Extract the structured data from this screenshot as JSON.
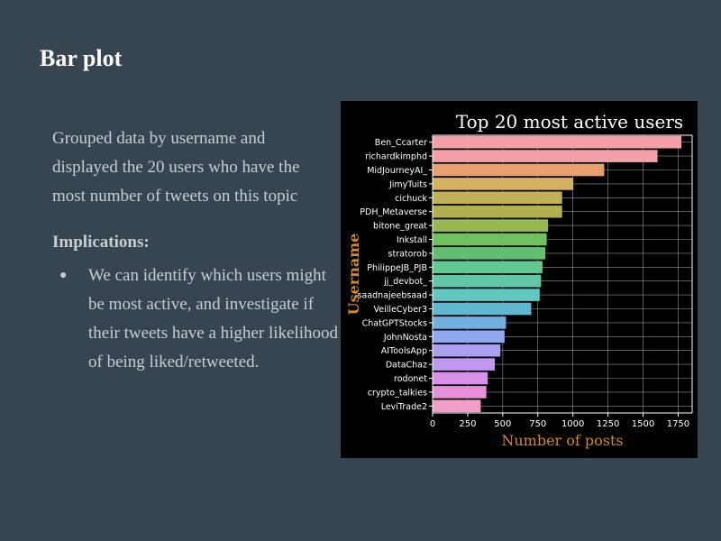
{
  "slide": {
    "title": "Bar plot",
    "description": "Grouped data by username and displayed the 20 users who have the most number of tweets on this topic",
    "implications_heading": "Implications:",
    "bullets": [
      "We can identify which users might be most active, and investigate if their tweets have a higher likelihood of being liked/retweeted."
    ]
  },
  "colors": {
    "background": "#36454f",
    "text": "#c7ced4",
    "title": "#ffffff",
    "chart_background": "#000000",
    "axis_label": "#d18a1e"
  },
  "chart_data": {
    "type": "bar",
    "orientation": "horizontal",
    "title": "Top 20 most active users",
    "xlabel": "Number of posts",
    "ylabel": "Username",
    "xlim": [
      0,
      1850
    ],
    "xticks": [
      0,
      250,
      500,
      750,
      1000,
      1250,
      1500,
      1750
    ],
    "grid": true,
    "categories": [
      "Ben_Ccarter",
      "richardkimphd",
      "MidJourneyAI_",
      "JimyTuits",
      "cichuck",
      "PDH_Metaverse",
      "bitone_great",
      "Inkstall",
      "stratorob",
      "PhilippeJB_PJB",
      "jj_devbot_",
      "saadnajeebsaad",
      "VeilleCyber3",
      "ChatGPTStocks",
      "JohnNosta",
      "AIToolsApp",
      "DataChaz",
      "rodonet",
      "crypto_talkies",
      "LeviTrade2"
    ],
    "values": [
      1770,
      1600,
      1220,
      1000,
      920,
      920,
      820,
      810,
      800,
      780,
      770,
      760,
      700,
      520,
      510,
      480,
      440,
      390,
      380,
      340
    ],
    "bar_colors": [
      "#f4a0a8",
      "#f4a0a8",
      "#e8a070",
      "#d4b060",
      "#c0b058",
      "#b0b050",
      "#98b850",
      "#70c060",
      "#60c070",
      "#60c890",
      "#60c8a8",
      "#60c8c0",
      "#60b8d0",
      "#70b0e0",
      "#90a8f0",
      "#a8a0f0",
      "#c098f0",
      "#d890e8",
      "#e890d8",
      "#f0a0c8"
    ]
  }
}
